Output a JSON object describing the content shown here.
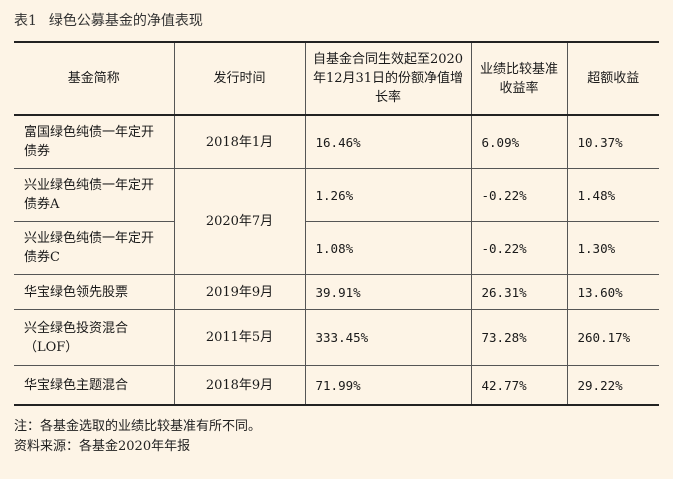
{
  "title": {
    "number": "表1",
    "text": "绿色公募基金的净值表现"
  },
  "table": {
    "headers": [
      "基金简称",
      "发行时间",
      "自基金合同生效起至2020年12月31日的份额净值增长率",
      "业绩比较基准收益率",
      "超额收益"
    ],
    "rows": [
      {
        "name": "富国绿色纯债一年定开债券",
        "date": "2018年1月",
        "growth": "16.46%",
        "benchmark": "6.09%",
        "excess": "10.37%"
      },
      {
        "name": "兴业绿色纯债一年定开债券A",
        "date": "2020年7月",
        "growth": "1.26%",
        "benchmark": "-0.22%",
        "excess": "1.48%"
      },
      {
        "name": "兴业绿色纯债一年定开债券C",
        "date": "",
        "growth": "1.08%",
        "benchmark": "-0.22%",
        "excess": "1.30%"
      },
      {
        "name": "华宝绿色领先股票",
        "date": "2019年9月",
        "growth": "39.91%",
        "benchmark": "26.31%",
        "excess": "13.60%"
      },
      {
        "name": "兴全绿色投资混合（LOF）",
        "date": "2011年5月",
        "growth": "333.45%",
        "benchmark": "73.28%",
        "excess": "260.17%"
      },
      {
        "name": "华宝绿色主题混合",
        "date": "2018年9月",
        "growth": "71.99%",
        "benchmark": "42.77%",
        "excess": "29.22%"
      }
    ]
  },
  "notes": {
    "note": "注：各基金选取的业绩比较基准有所不同。",
    "source": "资料来源：各基金2020年年报"
  }
}
